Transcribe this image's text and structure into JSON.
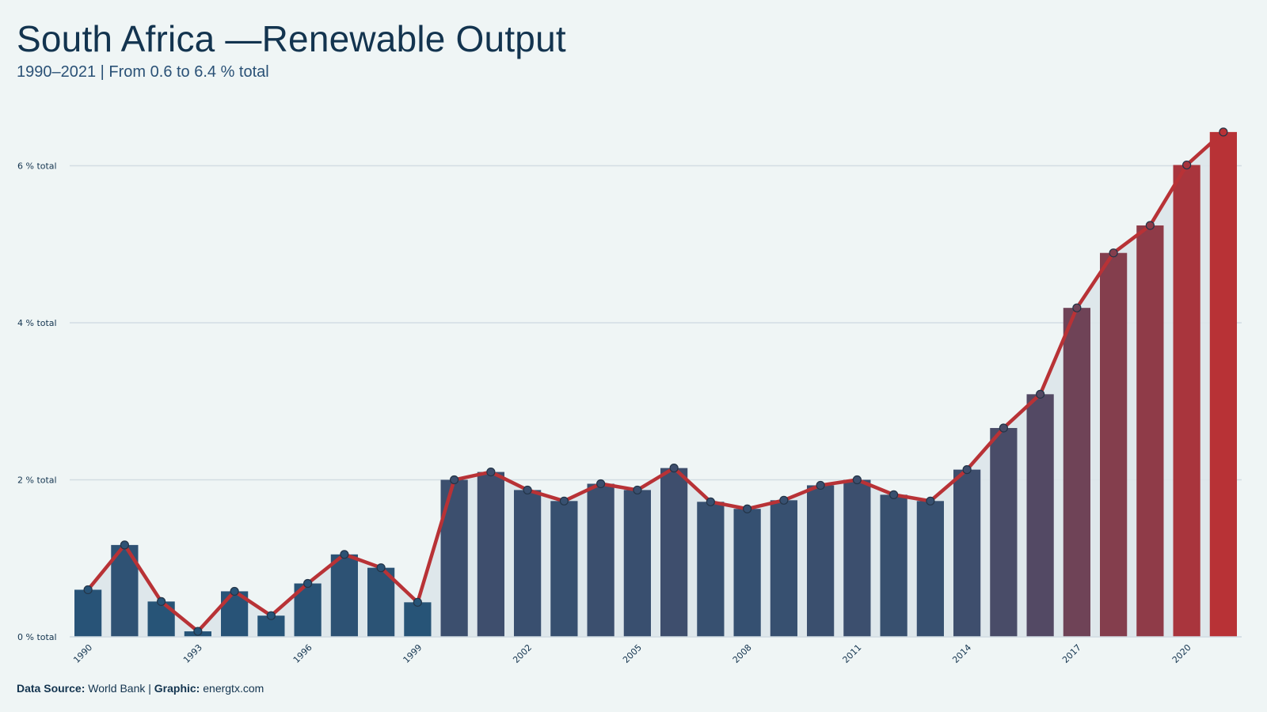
{
  "title": "South Africa —Renewable Output",
  "subtitle": "1990–2021 | From 0.6 to 6.4 % total",
  "footer": {
    "source_label": "Data Source:",
    "source_value": "World Bank",
    "separator": "|",
    "graphic_label": "Graphic:",
    "graphic_value": "energtx.com"
  },
  "colors": {
    "background": "#eff5f5",
    "bar_low": "#255478",
    "bar_high": "#b83236",
    "line": "#b83236",
    "marker": "#4a5a78",
    "area": "#dce5ea",
    "grid": "#d3dde3",
    "text": "#13344f"
  },
  "chart_data": {
    "type": "bar",
    "overlay": "line with markers",
    "x": [
      1990,
      1991,
      1992,
      1993,
      1994,
      1995,
      1996,
      1997,
      1998,
      1999,
      2000,
      2001,
      2002,
      2003,
      2004,
      2005,
      2006,
      2007,
      2008,
      2009,
      2010,
      2011,
      2012,
      2013,
      2014,
      2015,
      2016,
      2017,
      2018,
      2019,
      2020,
      2021
    ],
    "values": [
      0.6,
      1.17,
      0.45,
      0.07,
      0.58,
      0.27,
      0.68,
      1.05,
      0.88,
      0.44,
      2.0,
      2.1,
      1.87,
      1.73,
      1.95,
      1.87,
      2.15,
      1.72,
      1.63,
      1.74,
      1.93,
      2.0,
      1.81,
      1.73,
      2.13,
      2.66,
      3.09,
      4.19,
      4.89,
      5.24,
      6.01,
      6.43
    ],
    "ylim": [
      0,
      6.6
    ],
    "y_ticks": [
      0,
      2,
      4,
      6
    ],
    "y_tick_labels": [
      "0 % total",
      "2 % total",
      "4 % total",
      "6 % total"
    ],
    "x_tick_labels": [
      "1990",
      "1993",
      "1996",
      "1999",
      "2002",
      "2005",
      "2008",
      "2011",
      "2014",
      "2017",
      "2020"
    ],
    "grid": "horizontal",
    "legend": "none"
  }
}
